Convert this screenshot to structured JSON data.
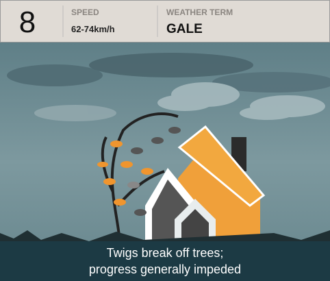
{
  "header": {
    "number": "8",
    "speed_label": "SPEED",
    "speed": "62-74km/h",
    "term_label": "WEATHER TERM",
    "term": "GALE"
  },
  "caption": {
    "lines": [
      "Twigs break off trees;",
      "progress generally impeded"
    ]
  }
}
